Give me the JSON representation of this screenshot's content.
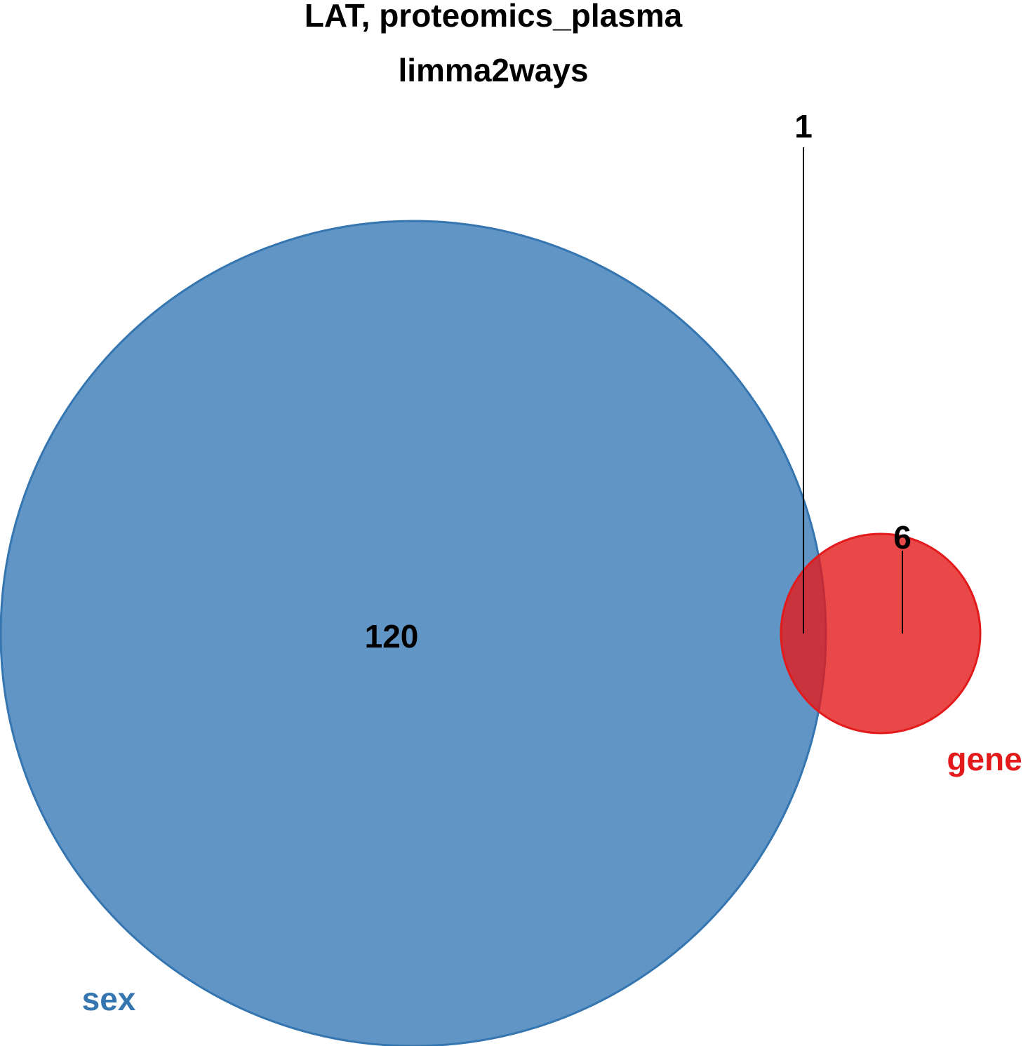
{
  "title": {
    "line1": "LAT, proteomics_plasma",
    "line2": "limma2ways"
  },
  "sets": [
    {
      "key": "sex",
      "label": "sex",
      "fill": "#3D7EB8",
      "stroke": "#3575B0",
      "fill_opacity": 0.82
    },
    {
      "key": "gene",
      "label": "gene",
      "fill": "#E31A1C",
      "stroke": "#E31A1C",
      "fill_opacity": 0.8
    }
  ],
  "regions": {
    "sex_only": "120",
    "intersection": "1",
    "gene_only": "6"
  }
}
